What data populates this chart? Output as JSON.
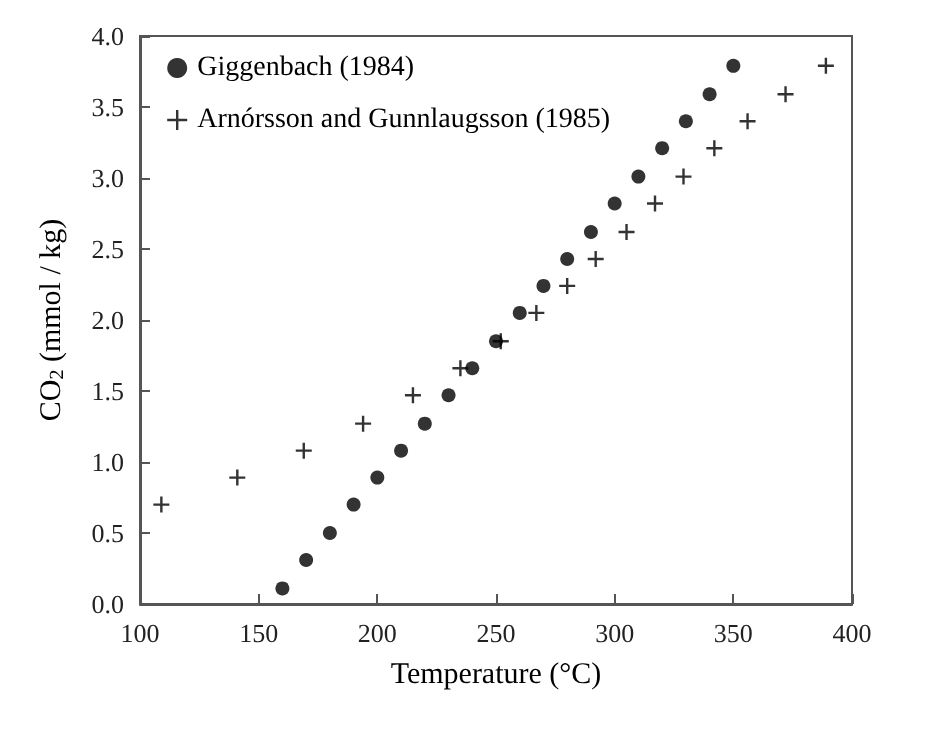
{
  "chart_data": {
    "type": "scatter",
    "xlabel": "Temperature (°C)",
    "ylabel": "CO$_{2}$ (mmol / kg)",
    "xlim": [
      100,
      400
    ],
    "xticks": [
      100,
      150,
      200,
      250,
      300,
      350,
      400
    ],
    "ylim": [
      0,
      4
    ],
    "yticks": [
      {
        "value": 0,
        "label": "0.0"
      },
      {
        "value": 0.5,
        "label": "0.5"
      },
      {
        "value": 1,
        "label": "1.0"
      },
      {
        "value": 1.5,
        "label": "1.5"
      },
      {
        "value": 2,
        "label": "2.0"
      },
      {
        "value": 2.5,
        "label": "2.5"
      },
      {
        "value": 3,
        "label": "3.0"
      },
      {
        "value": 3.5,
        "label": "3.5"
      },
      {
        "value": 4,
        "label": "4.0"
      }
    ],
    "grid": false,
    "legend": "top left",
    "series": [
      {
        "name": "Giggenbach (1984)",
        "color": "#000000",
        "marker": "circle",
        "x": [
          160,
          170,
          180,
          190,
          200,
          210,
          220,
          230,
          240,
          250,
          260,
          270,
          280,
          290,
          300,
          310,
          320,
          330,
          340,
          350
        ],
        "values": [
          0.11,
          0.31,
          0.5,
          0.7,
          0.89,
          1.08,
          1.27,
          1.47,
          1.66,
          1.85,
          2.05,
          2.24,
          2.43,
          2.62,
          2.82,
          3.01,
          3.21,
          3.4,
          3.59,
          3.79
        ]
      },
      {
        "name": "Arnórsson and Gunnlaugsson (1985)",
        "color": "#000000",
        "marker": "cross",
        "x": [
          109,
          141,
          169,
          194,
          215,
          235,
          252,
          267,
          280,
          292,
          305,
          317,
          329,
          342,
          356,
          372,
          389
        ],
        "values": [
          0.7,
          0.89,
          1.08,
          1.27,
          1.47,
          1.66,
          1.85,
          2.05,
          2.24,
          2.43,
          2.62,
          2.82,
          3.01,
          3.21,
          3.4,
          3.59,
          3.79
        ]
      }
    ]
  }
}
